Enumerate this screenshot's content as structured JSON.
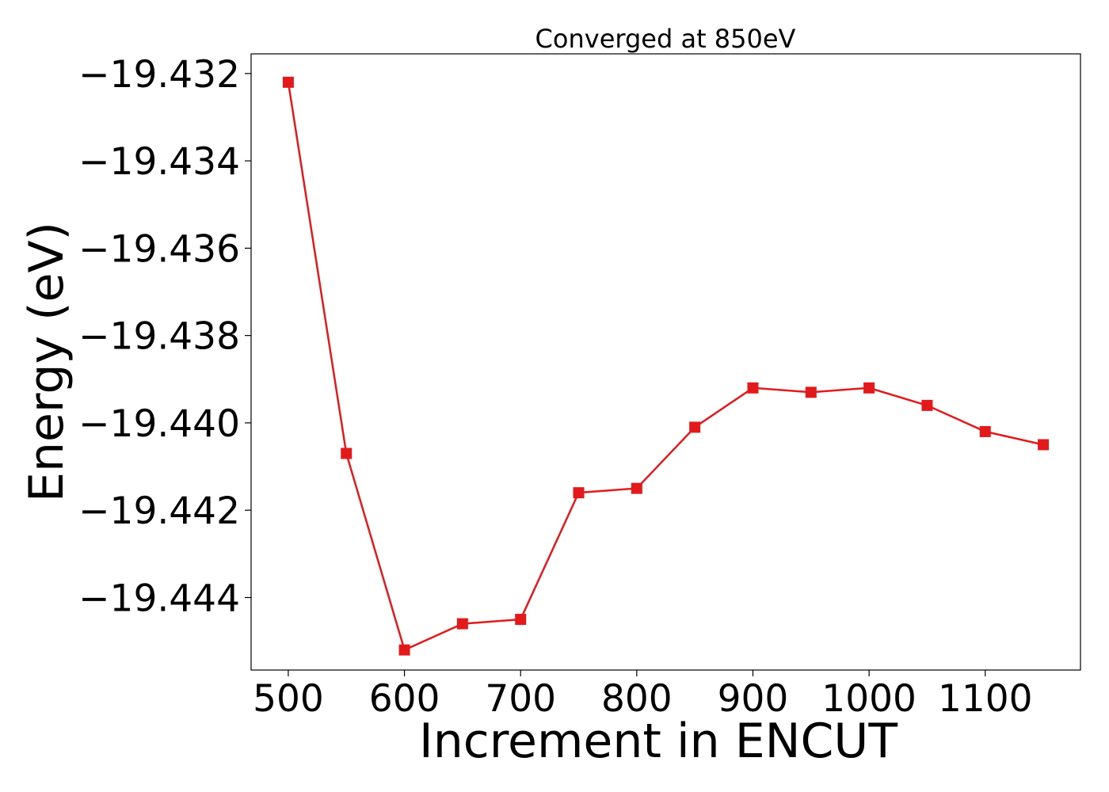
{
  "chart_data": {
    "type": "line",
    "title": "Converged at 850eV",
    "xlabel": "Increment in ENCUT",
    "ylabel": "Energy (eV)",
    "xlim": [
      468,
      1182
    ],
    "ylim": [
      -19.44566,
      -19.43155
    ],
    "x_ticks": [
      500,
      600,
      700,
      800,
      900,
      1000,
      1100
    ],
    "x_tick_labels": [
      "500",
      "600",
      "700",
      "800",
      "900",
      "1000",
      "1100"
    ],
    "y_ticks": [
      -19.432,
      -19.434,
      -19.436,
      -19.438,
      -19.44,
      -19.442,
      -19.444
    ],
    "y_tick_labels": [
      "−19.432",
      "−19.434",
      "−19.436",
      "−19.438",
      "−19.440",
      "−19.442",
      "−19.444"
    ],
    "grid": false,
    "series": [
      {
        "color": "#e31a1c",
        "marker": "square",
        "x": [
          500,
          550,
          600,
          650,
          700,
          750,
          800,
          850,
          900,
          950,
          1000,
          1050,
          1100,
          1150
        ],
        "y": [
          -19.4322,
          -19.4407,
          -19.4452,
          -19.4446,
          -19.4445,
          -19.4416,
          -19.4415,
          -19.4401,
          -19.4392,
          -19.4393,
          -19.4392,
          -19.4396,
          -19.4402,
          -19.4405
        ]
      }
    ]
  }
}
